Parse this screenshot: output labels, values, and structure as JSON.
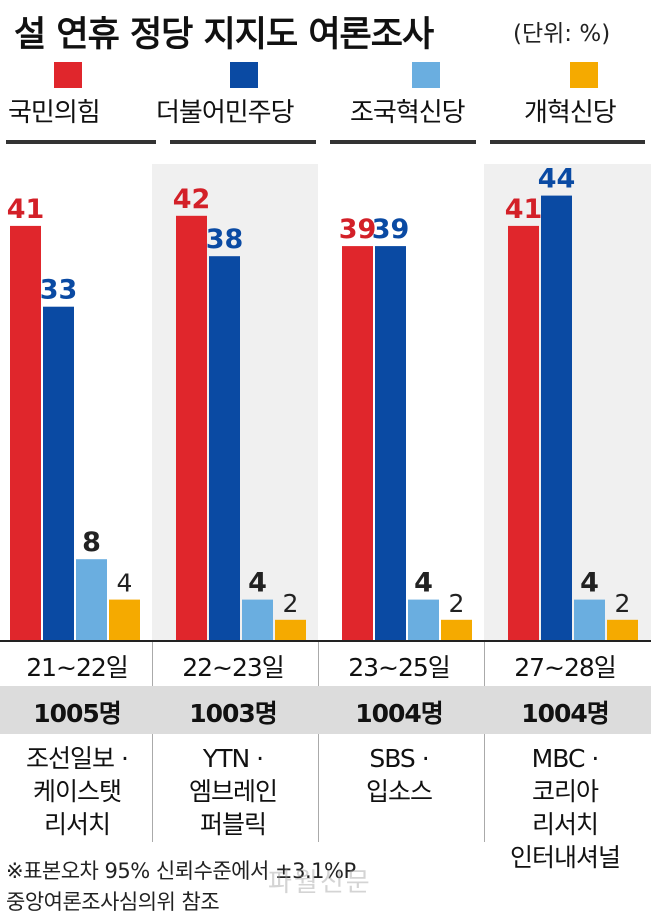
{
  "title": "설 연휴 정당 지지도 여론조사",
  "unit": "(단위: %)",
  "watermark": "파월신문",
  "footnote": {
    "line1": "※표본오차 95% 신뢰수준에서 ±3.1%P",
    "line2": "중앙여론조사심의위 참조"
  },
  "chart_data": {
    "type": "bar",
    "title": "설 연휴 정당 지지도 여론조사",
    "unit": "%",
    "legend_position": "top",
    "grid": false,
    "ylim": [
      0,
      44
    ],
    "categories": [
      "21~22일",
      "22~23일",
      "23~25일",
      "27~28일"
    ],
    "samples": [
      "1005명",
      "1003명",
      "1004명",
      "1004명"
    ],
    "pollsters": [
      [
        "조선일보 ·",
        "케이스탯",
        "리서치"
      ],
      [
        "YTN ·",
        "엠브레인",
        "퍼블릭"
      ],
      [
        "SBS ·",
        "입소스"
      ],
      [
        "MBC ·",
        "코리아",
        "리서치",
        "인터내셔널"
      ]
    ],
    "series": [
      {
        "name": "국민의힘",
        "color": "#e0262c",
        "label_color": "#d32028",
        "values": [
          41,
          42,
          39,
          41
        ]
      },
      {
        "name": "더불어민주당",
        "color": "#0a4aa3",
        "label_color": "#0a4aa3",
        "values": [
          33,
          38,
          39,
          44
        ]
      },
      {
        "name": "조국혁신당",
        "color": "#6aaee0",
        "label_color": "#222222",
        "values": [
          8,
          4,
          4,
          4
        ]
      },
      {
        "name": "개혁신당",
        "color": "#f5aa00",
        "label_color": "#222222",
        "values": [
          4,
          2,
          2,
          2
        ]
      }
    ]
  }
}
